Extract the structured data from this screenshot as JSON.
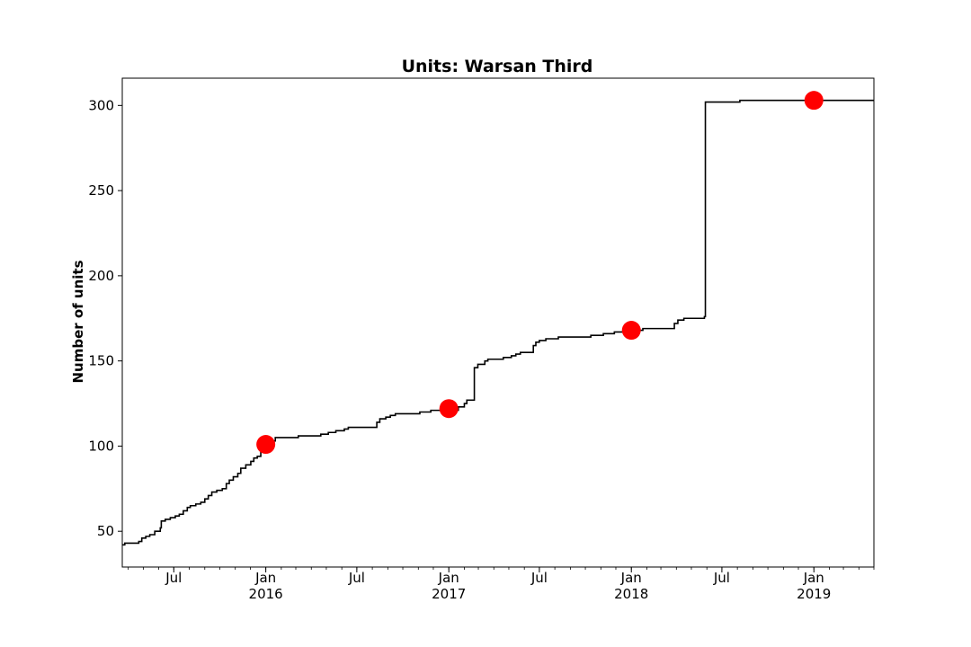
{
  "chart_data": {
    "type": "line",
    "title": "Units: Warsan Third",
    "xlabel": "",
    "ylabel": "Number of units",
    "x_axis_type": "date",
    "xlim": [
      "2015-03-20",
      "2019-05-01"
    ],
    "ylim": [
      29,
      316
    ],
    "grid": false,
    "legend": "none",
    "colors": {
      "line": "#000000",
      "markers": "#ff0000"
    },
    "y_ticks": [
      50,
      100,
      150,
      200,
      250,
      300
    ],
    "x_ticks_major": [
      {
        "date": "2015-07-01",
        "label": "Jul",
        "sublabel": ""
      },
      {
        "date": "2016-01-01",
        "label": "Jan",
        "sublabel": "2016"
      },
      {
        "date": "2016-07-01",
        "label": "Jul",
        "sublabel": ""
      },
      {
        "date": "2017-01-01",
        "label": "Jan",
        "sublabel": "2017"
      },
      {
        "date": "2017-07-01",
        "label": "Jul",
        "sublabel": ""
      },
      {
        "date": "2018-01-01",
        "label": "Jan",
        "sublabel": "2018"
      },
      {
        "date": "2018-07-01",
        "label": "Jul",
        "sublabel": ""
      },
      {
        "date": "2019-01-01",
        "label": "Jan",
        "sublabel": "2019"
      }
    ],
    "series": [
      {
        "style": "step",
        "points": [
          [
            "2015-03-20",
            42
          ],
          [
            "2015-03-25",
            43
          ],
          [
            "2015-04-18",
            43
          ],
          [
            "2015-04-22",
            44
          ],
          [
            "2015-04-28",
            46
          ],
          [
            "2015-05-06",
            47
          ],
          [
            "2015-05-14",
            48
          ],
          [
            "2015-05-24",
            50
          ],
          [
            "2015-06-04",
            52
          ],
          [
            "2015-06-06",
            56
          ],
          [
            "2015-06-14",
            57
          ],
          [
            "2015-06-24",
            58
          ],
          [
            "2015-07-04",
            59
          ],
          [
            "2015-07-12",
            60
          ],
          [
            "2015-07-20",
            62
          ],
          [
            "2015-07-28",
            64
          ],
          [
            "2015-08-03",
            65
          ],
          [
            "2015-08-14",
            66
          ],
          [
            "2015-08-24",
            67
          ],
          [
            "2015-09-01",
            69
          ],
          [
            "2015-09-08",
            71
          ],
          [
            "2015-09-15",
            73
          ],
          [
            "2015-09-25",
            74
          ],
          [
            "2015-10-06",
            75
          ],
          [
            "2015-10-14",
            78
          ],
          [
            "2015-10-20",
            80
          ],
          [
            "2015-10-28",
            82
          ],
          [
            "2015-11-06",
            84
          ],
          [
            "2015-11-12",
            87
          ],
          [
            "2015-11-22",
            89
          ],
          [
            "2015-12-02",
            91
          ],
          [
            "2015-12-08",
            93
          ],
          [
            "2015-12-15",
            94
          ],
          [
            "2015-12-22",
            100
          ],
          [
            "2016-01-10",
            103
          ],
          [
            "2016-01-20",
            105
          ],
          [
            "2016-03-06",
            106
          ],
          [
            "2016-04-20",
            107
          ],
          [
            "2016-05-05",
            108
          ],
          [
            "2016-05-20",
            109
          ],
          [
            "2016-06-06",
            110
          ],
          [
            "2016-06-14",
            111
          ],
          [
            "2016-08-10",
            114
          ],
          [
            "2016-08-16",
            116
          ],
          [
            "2016-08-28",
            117
          ],
          [
            "2016-09-06",
            118
          ],
          [
            "2016-09-16",
            119
          ],
          [
            "2016-11-04",
            120
          ],
          [
            "2016-11-26",
            121
          ],
          [
            "2017-01-20",
            123
          ],
          [
            "2017-02-01",
            125
          ],
          [
            "2017-02-06",
            127
          ],
          [
            "2017-02-21",
            146
          ],
          [
            "2017-02-28",
            148
          ],
          [
            "2017-03-14",
            150
          ],
          [
            "2017-03-20",
            151
          ],
          [
            "2017-04-20",
            152
          ],
          [
            "2017-05-06",
            153
          ],
          [
            "2017-05-15",
            154
          ],
          [
            "2017-05-24",
            155
          ],
          [
            "2017-06-19",
            159
          ],
          [
            "2017-06-24",
            161
          ],
          [
            "2017-07-01",
            162
          ],
          [
            "2017-07-14",
            163
          ],
          [
            "2017-08-08",
            164
          ],
          [
            "2017-10-12",
            165
          ],
          [
            "2017-11-06",
            166
          ],
          [
            "2017-11-28",
            167
          ],
          [
            "2018-01-08",
            168
          ],
          [
            "2018-01-24",
            169
          ],
          [
            "2018-03-28",
            172
          ],
          [
            "2018-04-04",
            174
          ],
          [
            "2018-04-16",
            175
          ],
          [
            "2018-05-27",
            176
          ],
          [
            "2018-05-29",
            302
          ],
          [
            "2018-08-06",
            303
          ],
          [
            "2019-05-01",
            303
          ]
        ]
      }
    ],
    "markers": [
      {
        "date": "2016-01-01",
        "value": 101
      },
      {
        "date": "2017-01-01",
        "value": 122
      },
      {
        "date": "2018-01-01",
        "value": 168
      },
      {
        "date": "2019-01-01",
        "value": 303
      }
    ]
  }
}
